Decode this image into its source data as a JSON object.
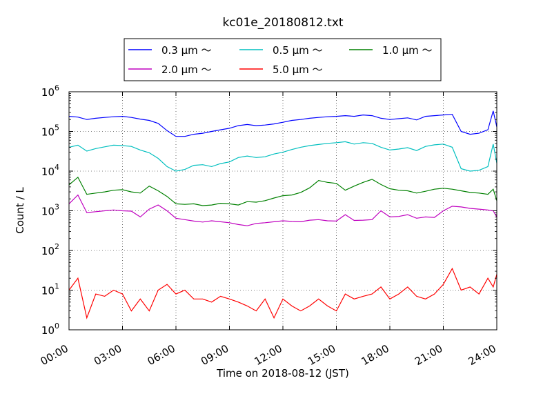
{
  "chart_data": {
    "type": "line",
    "title": "kc01e_20180812.txt",
    "xlabel": "Time on 2018-08-12 (JST)",
    "ylabel": "Count / L",
    "y_scale": "log",
    "ylim": [
      1,
      1000000
    ],
    "xlim_hours": [
      0,
      24
    ],
    "grid": true,
    "legend_position": "top-center",
    "x_tick_labels": [
      "00:00",
      "03:00",
      "06:00",
      "09:00",
      "12:00",
      "15:00",
      "18:00",
      "21:00",
      "24:00"
    ],
    "y_tick_labels": [
      {
        "base": "10",
        "exp": "0"
      },
      {
        "base": "10",
        "exp": "1"
      },
      {
        "base": "10",
        "exp": "2"
      },
      {
        "base": "10",
        "exp": "3"
      },
      {
        "base": "10",
        "exp": "4"
      },
      {
        "base": "10",
        "exp": "5"
      },
      {
        "base": "10",
        "exp": "6"
      }
    ],
    "series": [
      {
        "name": "0.3 μm ～",
        "color": "#0000ff",
        "x": [
          0.0,
          0.5,
          1.0,
          1.5,
          2.0,
          2.5,
          3.0,
          3.5,
          4.0,
          4.5,
          5.0,
          5.5,
          6.0,
          6.5,
          7.0,
          7.5,
          8.0,
          8.5,
          9.0,
          9.5,
          10.0,
          10.5,
          11.0,
          11.5,
          12.0,
          12.5,
          13.0,
          13.5,
          14.0,
          14.5,
          15.0,
          15.5,
          16.0,
          16.5,
          17.0,
          17.5,
          18.0,
          18.5,
          19.0,
          19.5,
          20.0,
          20.5,
          21.0,
          21.5,
          22.0,
          22.5,
          23.0,
          23.5,
          23.8,
          24.0
        ],
        "y": [
          240000,
          230000,
          200000,
          215000,
          225000,
          235000,
          240000,
          225000,
          205000,
          190000,
          160000,
          105000,
          75000,
          75000,
          85000,
          90000,
          100000,
          110000,
          120000,
          140000,
          150000,
          140000,
          145000,
          155000,
          170000,
          190000,
          200000,
          215000,
          225000,
          235000,
          240000,
          250000,
          240000,
          260000,
          250000,
          215000,
          200000,
          210000,
          220000,
          195000,
          240000,
          250000,
          260000,
          270000,
          100000,
          85000,
          90000,
          110000,
          330000,
          130000
        ]
      },
      {
        "name": "0.5 μm ～",
        "color": "#00bfbf",
        "x": [
          0.0,
          0.5,
          1.0,
          1.5,
          2.0,
          2.5,
          3.0,
          3.5,
          4.0,
          4.5,
          5.0,
          5.5,
          6.0,
          6.5,
          7.0,
          7.5,
          8.0,
          8.5,
          9.0,
          9.5,
          10.0,
          10.5,
          11.0,
          11.5,
          12.0,
          12.5,
          13.0,
          13.5,
          14.0,
          14.5,
          15.0,
          15.5,
          16.0,
          16.5,
          17.0,
          17.5,
          18.0,
          18.5,
          19.0,
          19.5,
          20.0,
          20.5,
          21.0,
          21.5,
          22.0,
          22.5,
          23.0,
          23.5,
          23.8,
          24.0
        ],
        "y": [
          40000,
          45000,
          32000,
          37000,
          41000,
          45000,
          44000,
          42000,
          34000,
          29000,
          21000,
          13000,
          10000,
          11000,
          14000,
          14500,
          13000,
          15500,
          17000,
          22000,
          24000,
          22000,
          23000,
          27000,
          30000,
          35000,
          40000,
          44000,
          47000,
          50000,
          52000,
          55000,
          48000,
          52000,
          50000,
          40000,
          34000,
          36000,
          39000,
          33000,
          42000,
          46000,
          48000,
          40000,
          11500,
          10000,
          10500,
          13000,
          48000,
          16000
        ]
      },
      {
        "name": "1.0 μm ～",
        "color": "#008000",
        "x": [
          0.0,
          0.5,
          1.0,
          1.5,
          2.0,
          2.5,
          3.0,
          3.5,
          4.0,
          4.5,
          5.0,
          5.5,
          6.0,
          6.5,
          7.0,
          7.5,
          8.0,
          8.5,
          9.0,
          9.5,
          10.0,
          10.5,
          11.0,
          11.5,
          12.0,
          12.5,
          13.0,
          13.5,
          14.0,
          14.5,
          15.0,
          15.5,
          16.0,
          16.5,
          17.0,
          17.5,
          18.0,
          18.5,
          19.0,
          19.5,
          20.0,
          20.5,
          21.0,
          21.5,
          22.0,
          22.5,
          23.0,
          23.5,
          23.8,
          24.0
        ],
        "y": [
          4500,
          7000,
          2600,
          2800,
          3000,
          3300,
          3400,
          3000,
          2800,
          4200,
          3200,
          2300,
          1500,
          1450,
          1500,
          1350,
          1400,
          1550,
          1500,
          1400,
          1700,
          1650,
          1800,
          2100,
          2400,
          2500,
          2900,
          3800,
          5800,
          5200,
          4900,
          3300,
          4200,
          5200,
          6200,
          4600,
          3600,
          3300,
          3200,
          2800,
          3100,
          3500,
          3700,
          3500,
          3200,
          2900,
          2800,
          2600,
          3500,
          1800
        ]
      },
      {
        "name": "2.0 μm ～",
        "color": "#bf00bf",
        "x": [
          0.0,
          0.5,
          1.0,
          1.5,
          2.0,
          2.5,
          3.0,
          3.5,
          4.0,
          4.5,
          5.0,
          5.5,
          6.0,
          6.5,
          7.0,
          7.5,
          8.0,
          8.5,
          9.0,
          9.5,
          10.0,
          10.5,
          11.0,
          11.5,
          12.0,
          12.5,
          13.0,
          13.5,
          14.0,
          14.5,
          15.0,
          15.5,
          16.0,
          16.5,
          17.0,
          17.5,
          18.0,
          18.5,
          19.0,
          19.5,
          20.0,
          20.5,
          21.0,
          21.5,
          22.0,
          22.5,
          23.0,
          23.5,
          23.8,
          24.0
        ],
        "y": [
          1500,
          2500,
          900,
          950,
          1000,
          1050,
          1000,
          980,
          700,
          1100,
          1400,
          1000,
          650,
          600,
          550,
          520,
          560,
          530,
          500,
          450,
          420,
          480,
          500,
          530,
          560,
          540,
          530,
          580,
          600,
          560,
          550,
          800,
          570,
          580,
          600,
          1000,
          700,
          720,
          800,
          650,
          700,
          680,
          1000,
          1300,
          1250,
          1150,
          1100,
          1050,
          1000,
          700
        ]
      },
      {
        "name": "5.0 μm ～",
        "color": "#ff0000",
        "x": [
          0.0,
          0.5,
          1.0,
          1.5,
          2.0,
          2.5,
          3.0,
          3.5,
          4.0,
          4.5,
          5.0,
          5.5,
          6.0,
          6.5,
          7.0,
          7.5,
          8.0,
          8.5,
          9.0,
          9.5,
          10.0,
          10.5,
          11.0,
          11.5,
          12.0,
          12.5,
          13.0,
          13.5,
          14.0,
          14.5,
          15.0,
          15.5,
          16.0,
          16.5,
          17.0,
          17.5,
          18.0,
          18.5,
          19.0,
          19.5,
          20.0,
          20.5,
          21.0,
          21.5,
          22.0,
          22.5,
          23.0,
          23.5,
          23.8,
          24.0
        ],
        "y": [
          10,
          20,
          2,
          8,
          7,
          10,
          8,
          3,
          6,
          3,
          10,
          14,
          8,
          10,
          6,
          6,
          5,
          7,
          6,
          5,
          4,
          3,
          6,
          2,
          6,
          4,
          3,
          4,
          6,
          4,
          3,
          8,
          6,
          7,
          8,
          12,
          6,
          8,
          12,
          7,
          6,
          8,
          14,
          35,
          10,
          12,
          8,
          20,
          12,
          25
        ]
      }
    ]
  }
}
